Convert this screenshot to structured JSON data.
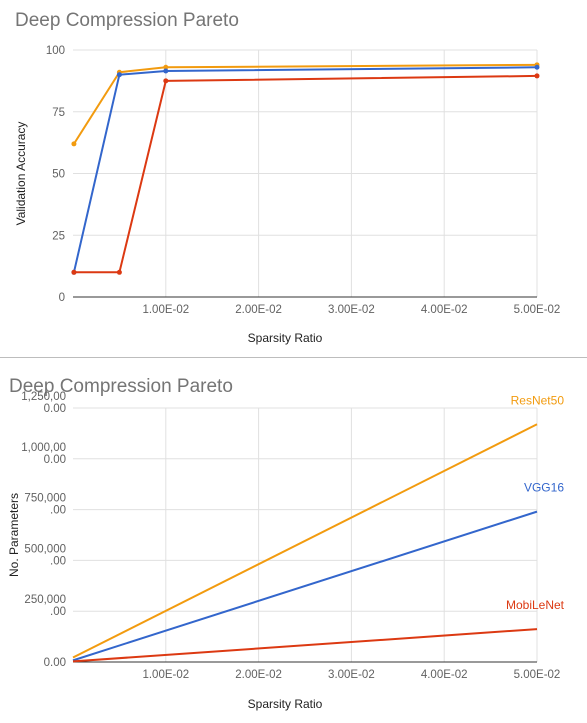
{
  "chart_data": [
    {
      "type": "line",
      "title": "Deep Compression Pareto",
      "xlabel": "Sparsity Ratio",
      "ylabel": "Validation Accuracy",
      "xlim": [
        0,
        0.05
      ],
      "ylim": [
        0,
        100
      ],
      "x_ticks": [
        {
          "value": 0.01,
          "label": "1.00E-02"
        },
        {
          "value": 0.02,
          "label": "2.00E-02"
        },
        {
          "value": 0.03,
          "label": "3.00E-02"
        },
        {
          "value": 0.04,
          "label": "4.00E-02"
        },
        {
          "value": 0.05,
          "label": "5.00E-02"
        }
      ],
      "y_ticks": [
        {
          "value": 0,
          "label": "0"
        },
        {
          "value": 25,
          "label": "25"
        },
        {
          "value": 50,
          "label": "50"
        },
        {
          "value": 75,
          "label": "75"
        },
        {
          "value": 100,
          "label": "100"
        }
      ],
      "grid": true,
      "legend": "none",
      "series": [
        {
          "color": "#f29b0f",
          "markers": true,
          "x": [
            0.0001,
            0.005,
            0.01,
            0.05
          ],
          "y": [
            62,
            91,
            93,
            94
          ]
        },
        {
          "color": "#3366cc",
          "markers": true,
          "x": [
            0.0001,
            0.005,
            0.01,
            0.05
          ],
          "y": [
            10,
            90,
            91.5,
            93
          ]
        },
        {
          "color": "#dc3912",
          "markers": true,
          "x": [
            0.0001,
            0.005,
            0.01,
            0.05
          ],
          "y": [
            10,
            10,
            87.5,
            89.5
          ]
        }
      ]
    },
    {
      "type": "line",
      "title": "Deep Compression Pareto",
      "xlabel": "Sparsity Ratio",
      "ylabel": "No. Parameters",
      "xlim": [
        0,
        0.05
      ],
      "ylim": [
        0,
        1250000
      ],
      "x_ticks": [
        {
          "value": 0.01,
          "label": "1.00E-02"
        },
        {
          "value": 0.02,
          "label": "2.00E-02"
        },
        {
          "value": 0.03,
          "label": "3.00E-02"
        },
        {
          "value": 0.04,
          "label": "4.00E-02"
        },
        {
          "value": 0.05,
          "label": "5.00E-02"
        }
      ],
      "y_ticks": [
        {
          "value": 0,
          "lines": [
            "0.00"
          ]
        },
        {
          "value": 250000,
          "lines": [
            "250,000",
            ".00"
          ]
        },
        {
          "value": 500000,
          "lines": [
            "500,000",
            ".00"
          ]
        },
        {
          "value": 750000,
          "lines": [
            "750,000",
            ".00"
          ]
        },
        {
          "value": 1000000,
          "lines": [
            "1,000,00",
            "0.00"
          ]
        },
        {
          "value": 1250000,
          "lines": [
            "1,250,00",
            "0.00"
          ]
        }
      ],
      "grid": true,
      "legend": "inline-right",
      "series": [
        {
          "name": "ResNet50",
          "color": "#f29b0f",
          "markers": false,
          "x": [
            0,
            0.05
          ],
          "y": [
            22000,
            1170000
          ]
        },
        {
          "name": "VGG16",
          "color": "#3366cc",
          "markers": false,
          "x": [
            0,
            0.05
          ],
          "y": [
            8000,
            740000
          ]
        },
        {
          "name": "MobiLeNet",
          "color": "#dc3912",
          "markers": false,
          "x": [
            0,
            0.05
          ],
          "y": [
            3000,
            162000
          ]
        }
      ]
    }
  ]
}
